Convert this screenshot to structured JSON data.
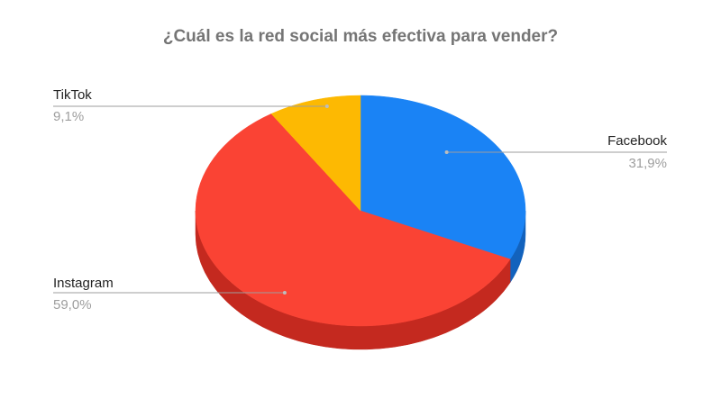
{
  "chart_data": {
    "type": "pie",
    "title": "¿Cuál es la red social más efectiva para vender?",
    "categories": [
      "Facebook",
      "Instagram",
      "TikTok"
    ],
    "values": [
      31.9,
      59.0,
      9.1
    ],
    "value_labels": [
      "31,9%",
      "59,0%",
      "9,1%"
    ],
    "colors": [
      "#1a83f5",
      "#fa4334",
      "#fdb902"
    ],
    "side_colors": [
      "#1262bd",
      "#c4291f",
      "#c98f00"
    ],
    "style": "3d",
    "legend": "labels-with-leader-lines"
  }
}
